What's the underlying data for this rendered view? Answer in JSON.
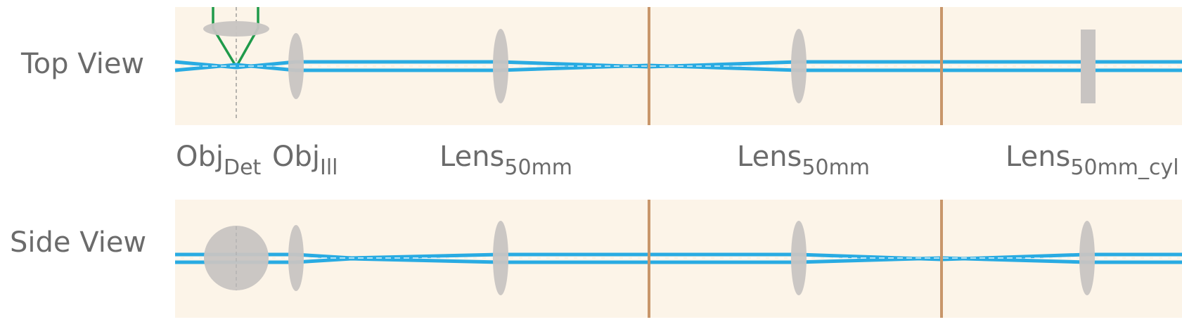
{
  "views": {
    "top": {
      "label": "Top View"
    },
    "side": {
      "label": "Side View"
    }
  },
  "lenses": [
    {
      "main": "Obj",
      "sub": "Det"
    },
    {
      "main": "Obj",
      "sub": "Ill"
    },
    {
      "main": "Lens",
      "sub": "50mm"
    },
    {
      "main": "Lens",
      "sub": "50mm"
    },
    {
      "main": "Lens",
      "sub": "50mm_cyl"
    }
  ],
  "colors": {
    "panel_bg": "#fcf4e8",
    "beam": "#29abe2",
    "lens": "#c8c4c2",
    "plane": "#c8966a",
    "detection": "#1f9a4a",
    "axis": "#888888"
  }
}
